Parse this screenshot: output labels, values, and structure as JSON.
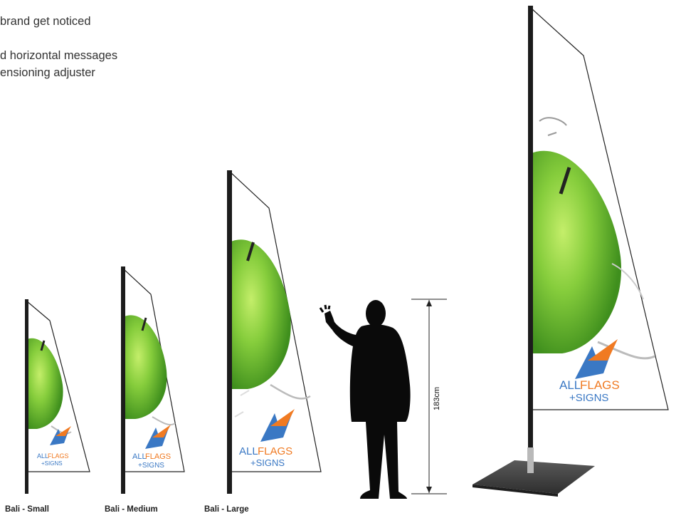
{
  "intro_lines": [
    "brand get noticed",
    "d horizontal messages",
    "ensioning adjuster"
  ],
  "captions": {
    "small": "Bali - Small",
    "medium": "Bali - Medium",
    "large": "Bali - Large"
  },
  "dimension_label": "183cm",
  "logo": {
    "word_all": "ALL",
    "word_flags": "FLAGS",
    "word_signs": "+SIGNS"
  },
  "colors": {
    "pole": "#1c1c1c",
    "leaf_green": "#7cc33a",
    "logo_blue": "#3a78c4",
    "logo_orange": "#f07a22",
    "base_plate": "#4a4a4a"
  }
}
